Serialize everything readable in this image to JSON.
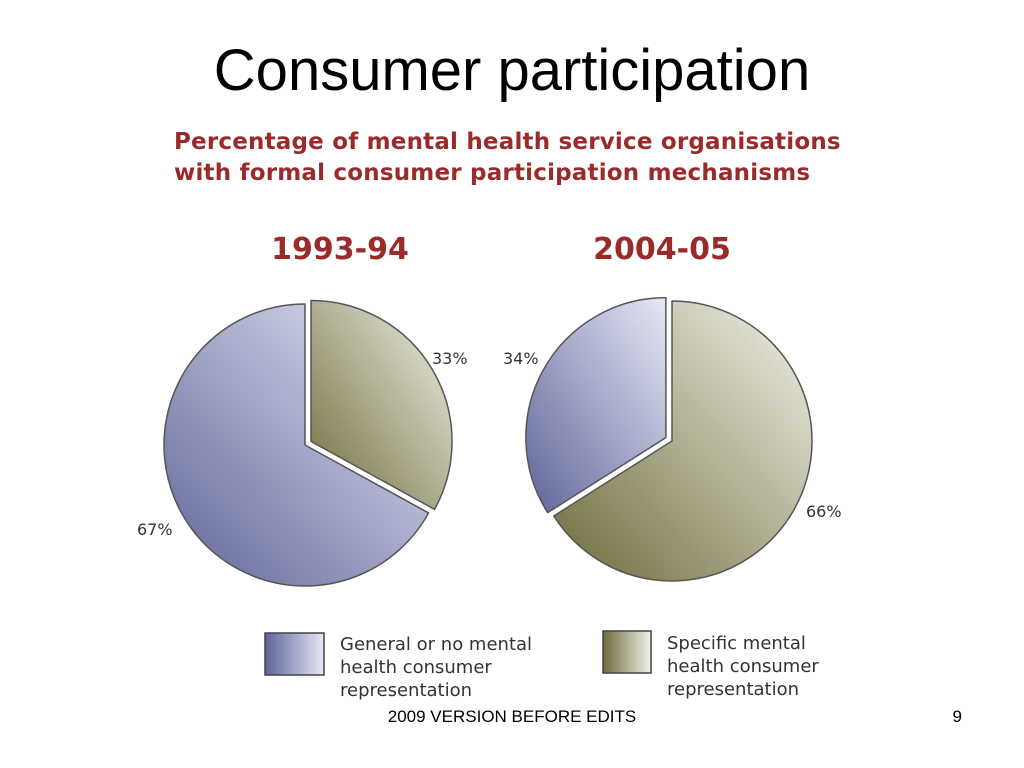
{
  "slide": {
    "title": "Consumer participation",
    "footer": "2009 VERSION BEFORE EDITS",
    "page_number": "9"
  },
  "chart_data": {
    "type": "pie",
    "title_lines": [
      "Percentage of mental health service organisations",
      "with formal consumer participation mechanisms"
    ],
    "categories": [
      "General or no mental health consumer representation",
      "Specific mental health consumer representation"
    ],
    "legend": [
      {
        "lines": [
          "General or no mental",
          "health consumer",
          "representation"
        ],
        "color_dark": "#5f6499",
        "color_light": "#e6e8f5"
      },
      {
        "lines": [
          "Specific mental",
          "health consumer",
          "representation"
        ],
        "color_dark": "#6e6b3a",
        "color_light": "#f2f2ea"
      }
    ],
    "legend_placement": "bottom",
    "series": [
      {
        "name": "1993-94",
        "values": [
          67,
          33
        ],
        "labels": [
          "67%",
          "33%"
        ]
      },
      {
        "name": "2004-05",
        "values": [
          34,
          66
        ],
        "labels": [
          "34%",
          "66%"
        ]
      }
    ],
    "colors": {
      "title": "#9b2a2a",
      "general_dark": "#5f6499",
      "general_light": "#e6e8f5",
      "specific_dark": "#6e6b3a",
      "specific_light": "#f2f2ea",
      "outline": "#555555"
    }
  }
}
